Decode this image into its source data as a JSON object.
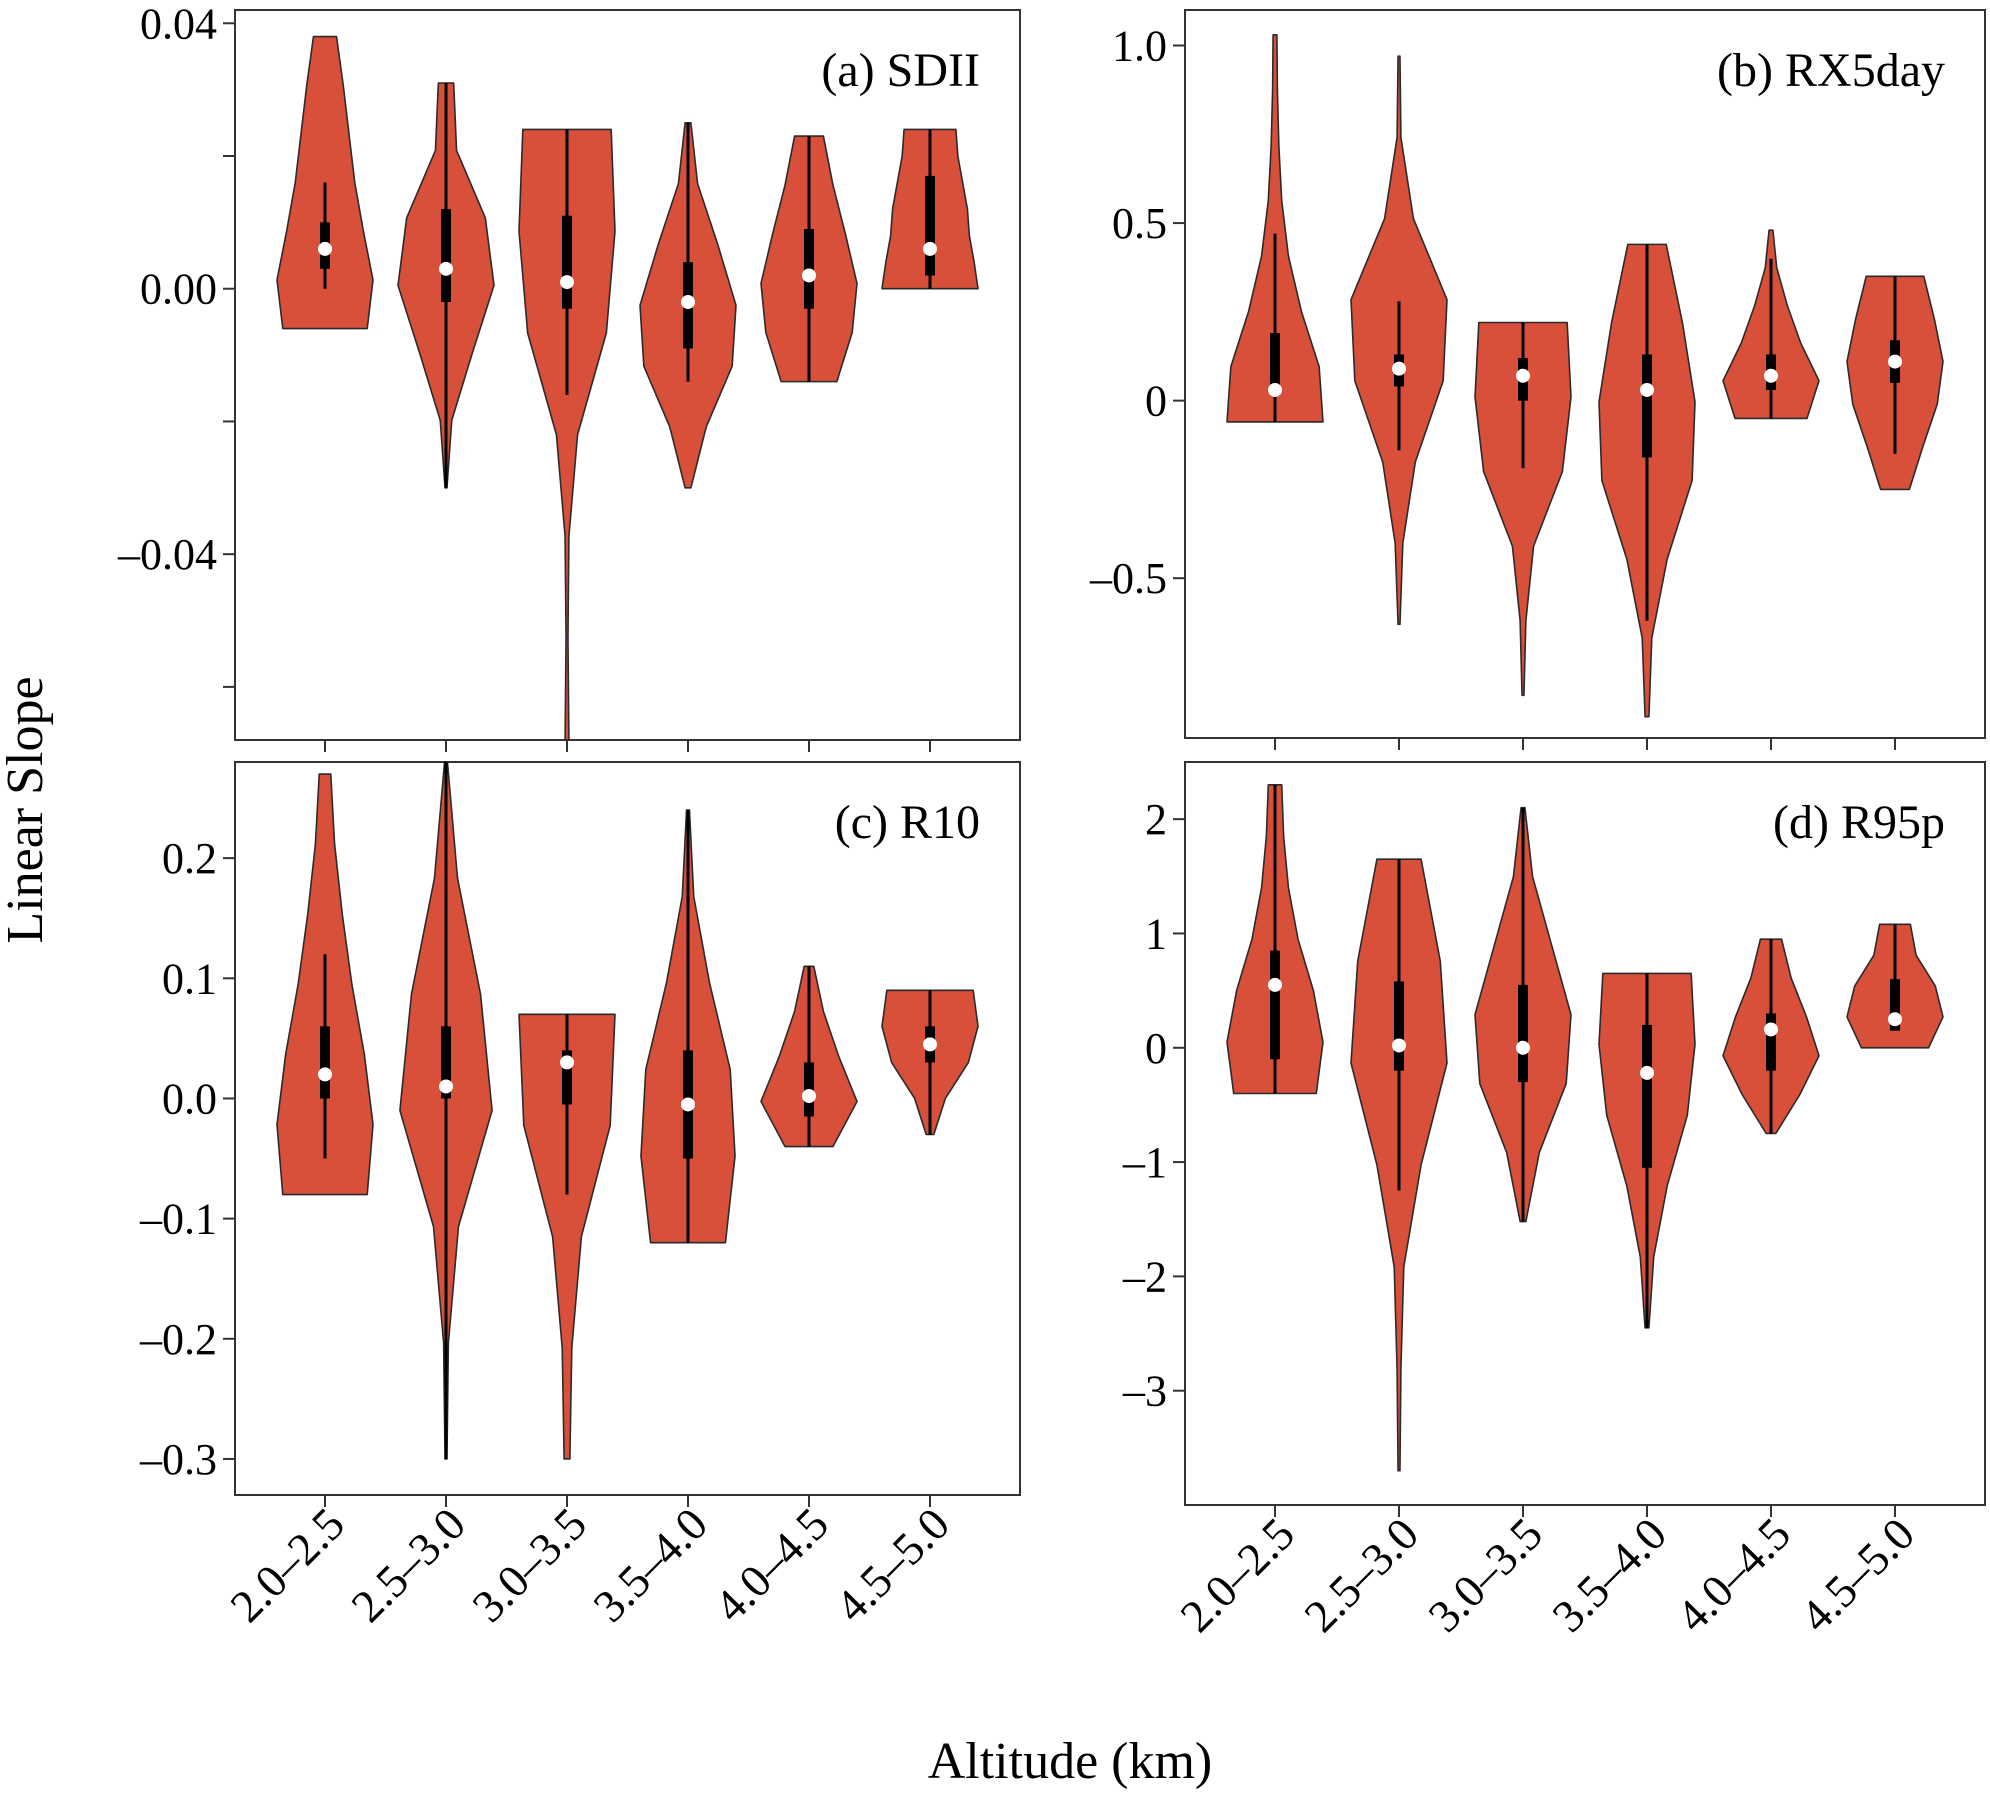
{
  "figure": {
    "ylabel": "Linear Slope",
    "xlabel": "Altitude (km)"
  },
  "colors": {
    "violin_fill": "#d84f3a",
    "outline": "#2b2b2b",
    "box": "#000000",
    "median_marker": "#ffffff"
  },
  "chart_data": [
    {
      "type": "violin",
      "title": "(a) SDII",
      "categories": [
        "2.0–2.5",
        "2.5–3.0",
        "3.0–3.5",
        "3.5–4.0",
        "4.0–4.5",
        "4.5–5.0"
      ],
      "ylim": [
        -0.068,
        0.042
      ],
      "yticks": [
        -0.06,
        -0.04,
        -0.02,
        0.0,
        0.02,
        0.04
      ],
      "ytick_labels": [
        "",
        "–0.04",
        "",
        "0.00",
        "",
        "0.04"
      ],
      "series": [
        {
          "min": -0.006,
          "max": 0.038,
          "q1": 0.003,
          "median": 0.006,
          "q3": 0.01,
          "wlo": 0.0,
          "whi": 0.016,
          "widths": [
            0.88,
            1.0,
            0.8,
            0.62,
            0.5,
            0.38,
            0.24
          ]
        },
        {
          "min": -0.03,
          "max": 0.031,
          "q1": -0.002,
          "median": 0.003,
          "q3": 0.012,
          "wlo": -0.03,
          "whi": 0.031,
          "widths": [
            0.02,
            0.12,
            0.55,
            1.0,
            0.82,
            0.22,
            0.16
          ]
        },
        {
          "min": -0.068,
          "max": 0.024,
          "q1": -0.003,
          "median": 0.001,
          "q3": 0.011,
          "wlo": -0.016,
          "whi": 0.024,
          "widths": [
            0.04,
            0.02,
            0.04,
            0.22,
            0.82,
            1.0,
            0.92
          ]
        },
        {
          "min": -0.03,
          "max": 0.025,
          "q1": -0.009,
          "median": -0.002,
          "q3": 0.004,
          "wlo": -0.014,
          "whi": 0.025,
          "widths": [
            0.06,
            0.38,
            0.92,
            1.0,
            0.62,
            0.2,
            0.06
          ]
        },
        {
          "min": -0.014,
          "max": 0.023,
          "q1": -0.003,
          "median": 0.002,
          "q3": 0.009,
          "wlo": -0.014,
          "whi": 0.023,
          "widths": [
            0.58,
            0.9,
            1.0,
            0.76,
            0.5,
            0.3
          ]
        },
        {
          "min": 0.0,
          "max": 0.024,
          "q1": 0.002,
          "median": 0.006,
          "q3": 0.017,
          "wlo": 0.0,
          "whi": 0.024,
          "widths": [
            1.0,
            0.92,
            0.82,
            0.78,
            0.68,
            0.58,
            0.54
          ]
        }
      ]
    },
    {
      "type": "violin",
      "title": "(b) RX5day",
      "categories": [
        "2.0–2.5",
        "2.5–3.0",
        "3.0–3.5",
        "3.5–4.0",
        "4.0–4.5",
        "4.5–5.0"
      ],
      "ylim": [
        -0.95,
        1.1
      ],
      "yticks": [
        -0.5,
        0,
        0.5,
        1.0
      ],
      "ytick_labels": [
        "–0.5",
        "0",
        "0.5",
        "1.0"
      ],
      "series": [
        {
          "min": -0.06,
          "max": 1.03,
          "q1": 0.02,
          "median": 0.03,
          "q3": 0.19,
          "wlo": -0.06,
          "whi": 0.47,
          "widths": [
            1.0,
            0.92,
            0.55,
            0.28,
            0.14,
            0.08,
            0.05,
            0.04
          ]
        },
        {
          "min": -0.63,
          "max": 0.97,
          "q1": 0.04,
          "median": 0.09,
          "q3": 0.13,
          "wlo": -0.14,
          "whi": 0.28,
          "widths": [
            0.02,
            0.08,
            0.34,
            0.92,
            1.0,
            0.3,
            0.04,
            0.02
          ]
        },
        {
          "min": -0.83,
          "max": 0.22,
          "q1": 0.0,
          "median": 0.07,
          "q3": 0.12,
          "wlo": -0.19,
          "whi": 0.22,
          "widths": [
            0.02,
            0.06,
            0.22,
            0.82,
            1.0,
            0.92
          ]
        },
        {
          "min": -0.89,
          "max": 0.44,
          "q1": -0.16,
          "median": 0.03,
          "q3": 0.13,
          "wlo": -0.62,
          "whi": 0.44,
          "widths": [
            0.04,
            0.1,
            0.42,
            0.94,
            1.0,
            0.74,
            0.4
          ]
        },
        {
          "min": -0.05,
          "max": 0.48,
          "q1": 0.03,
          "median": 0.07,
          "q3": 0.13,
          "wlo": -0.05,
          "whi": 0.4,
          "widths": [
            0.75,
            1.0,
            0.62,
            0.34,
            0.12,
            0.04
          ]
        },
        {
          "min": -0.25,
          "max": 0.35,
          "q1": 0.05,
          "median": 0.11,
          "q3": 0.17,
          "wlo": -0.15,
          "whi": 0.35,
          "widths": [
            0.3,
            0.58,
            0.88,
            1.0,
            0.82,
            0.6
          ]
        }
      ]
    },
    {
      "type": "violin",
      "title": "(c) R10",
      "categories": [
        "2.0–2.5",
        "2.5–3.0",
        "3.0–3.5",
        "3.5–4.0",
        "4.0–4.5",
        "4.5–5.0"
      ],
      "ylim": [
        -0.33,
        0.28
      ],
      "yticks": [
        -0.3,
        -0.2,
        -0.1,
        0.0,
        0.1,
        0.2
      ],
      "ytick_labels": [
        "–0.3",
        "–0.2",
        "–0.1",
        "0.0",
        "0.1",
        "0.2"
      ],
      "series": [
        {
          "min": -0.08,
          "max": 0.27,
          "q1": 0.0,
          "median": 0.02,
          "q3": 0.06,
          "wlo": -0.05,
          "whi": 0.12,
          "widths": [
            0.88,
            1.0,
            0.82,
            0.56,
            0.36,
            0.2,
            0.12
          ]
        },
        {
          "min": -0.3,
          "max": 0.28,
          "q1": 0.0,
          "median": 0.01,
          "q3": 0.06,
          "wlo": -0.3,
          "whi": 0.28,
          "widths": [
            0.02,
            0.05,
            0.26,
            0.96,
            0.72,
            0.24,
            0.03
          ]
        },
        {
          "min": -0.3,
          "max": 0.07,
          "q1": -0.005,
          "median": 0.03,
          "q3": 0.04,
          "wlo": -0.08,
          "whi": 0.07,
          "widths": [
            0.06,
            0.1,
            0.3,
            0.9,
            1.0
          ]
        },
        {
          "min": -0.12,
          "max": 0.24,
          "q1": -0.05,
          "median": -0.005,
          "q3": 0.04,
          "wlo": -0.12,
          "whi": 0.24,
          "widths": [
            0.78,
            0.98,
            0.88,
            0.45,
            0.12,
            0.03
          ]
        },
        {
          "min": -0.04,
          "max": 0.11,
          "q1": -0.015,
          "median": 0.002,
          "q3": 0.03,
          "wlo": -0.04,
          "whi": 0.11,
          "widths": [
            0.5,
            1.0,
            0.62,
            0.3,
            0.1
          ]
        },
        {
          "min": -0.03,
          "max": 0.09,
          "q1": 0.03,
          "median": 0.045,
          "q3": 0.06,
          "wlo": -0.03,
          "whi": 0.09,
          "widths": [
            0.08,
            0.32,
            0.8,
            1.0,
            0.9
          ]
        }
      ]
    },
    {
      "type": "violin",
      "title": "(d) R95p",
      "categories": [
        "2.0–2.5",
        "2.5–3.0",
        "3.0–3.5",
        "3.5–4.0",
        "4.0–4.5",
        "4.5–5.0"
      ],
      "ylim": [
        -4.0,
        2.5
      ],
      "yticks": [
        -3,
        -2,
        -1,
        0,
        1,
        2
      ],
      "ytick_labels": [
        "–3",
        "–2",
        "–1",
        "0",
        "1",
        "2"
      ],
      "series": [
        {
          "min": -0.4,
          "max": 2.3,
          "q1": -0.1,
          "median": 0.55,
          "q3": 0.85,
          "wlo": -0.4,
          "whi": 2.3,
          "widths": [
            0.86,
            1.0,
            0.8,
            0.48,
            0.28,
            0.18,
            0.14
          ]
        },
        {
          "min": -3.7,
          "max": 1.65,
          "q1": -0.2,
          "median": 0.02,
          "q3": 0.58,
          "wlo": -1.25,
          "whi": 1.65,
          "widths": [
            0.02,
            0.04,
            0.1,
            0.46,
            1.0,
            0.86,
            0.46
          ]
        },
        {
          "min": -1.52,
          "max": 2.1,
          "q1": -0.3,
          "median": 0.0,
          "q3": 0.55,
          "wlo": -1.52,
          "whi": 2.1,
          "widths": [
            0.06,
            0.34,
            0.9,
            1.0,
            0.6,
            0.2,
            0.04
          ]
        },
        {
          "min": -2.45,
          "max": 0.65,
          "q1": -1.05,
          "median": -0.22,
          "q3": 0.2,
          "wlo": -2.45,
          "whi": 0.65,
          "widths": [
            0.04,
            0.14,
            0.42,
            0.84,
            1.0,
            0.92
          ]
        },
        {
          "min": -0.75,
          "max": 0.95,
          "q1": -0.2,
          "median": 0.16,
          "q3": 0.3,
          "wlo": -0.75,
          "whi": 0.95,
          "widths": [
            0.1,
            0.6,
            1.0,
            0.74,
            0.42,
            0.22
          ]
        },
        {
          "min": 0.0,
          "max": 1.08,
          "q1": 0.15,
          "median": 0.25,
          "q3": 0.6,
          "wlo": 0.15,
          "whi": 1.08,
          "widths": [
            0.7,
            1.0,
            0.84,
            0.44,
            0.32
          ]
        }
      ]
    }
  ]
}
